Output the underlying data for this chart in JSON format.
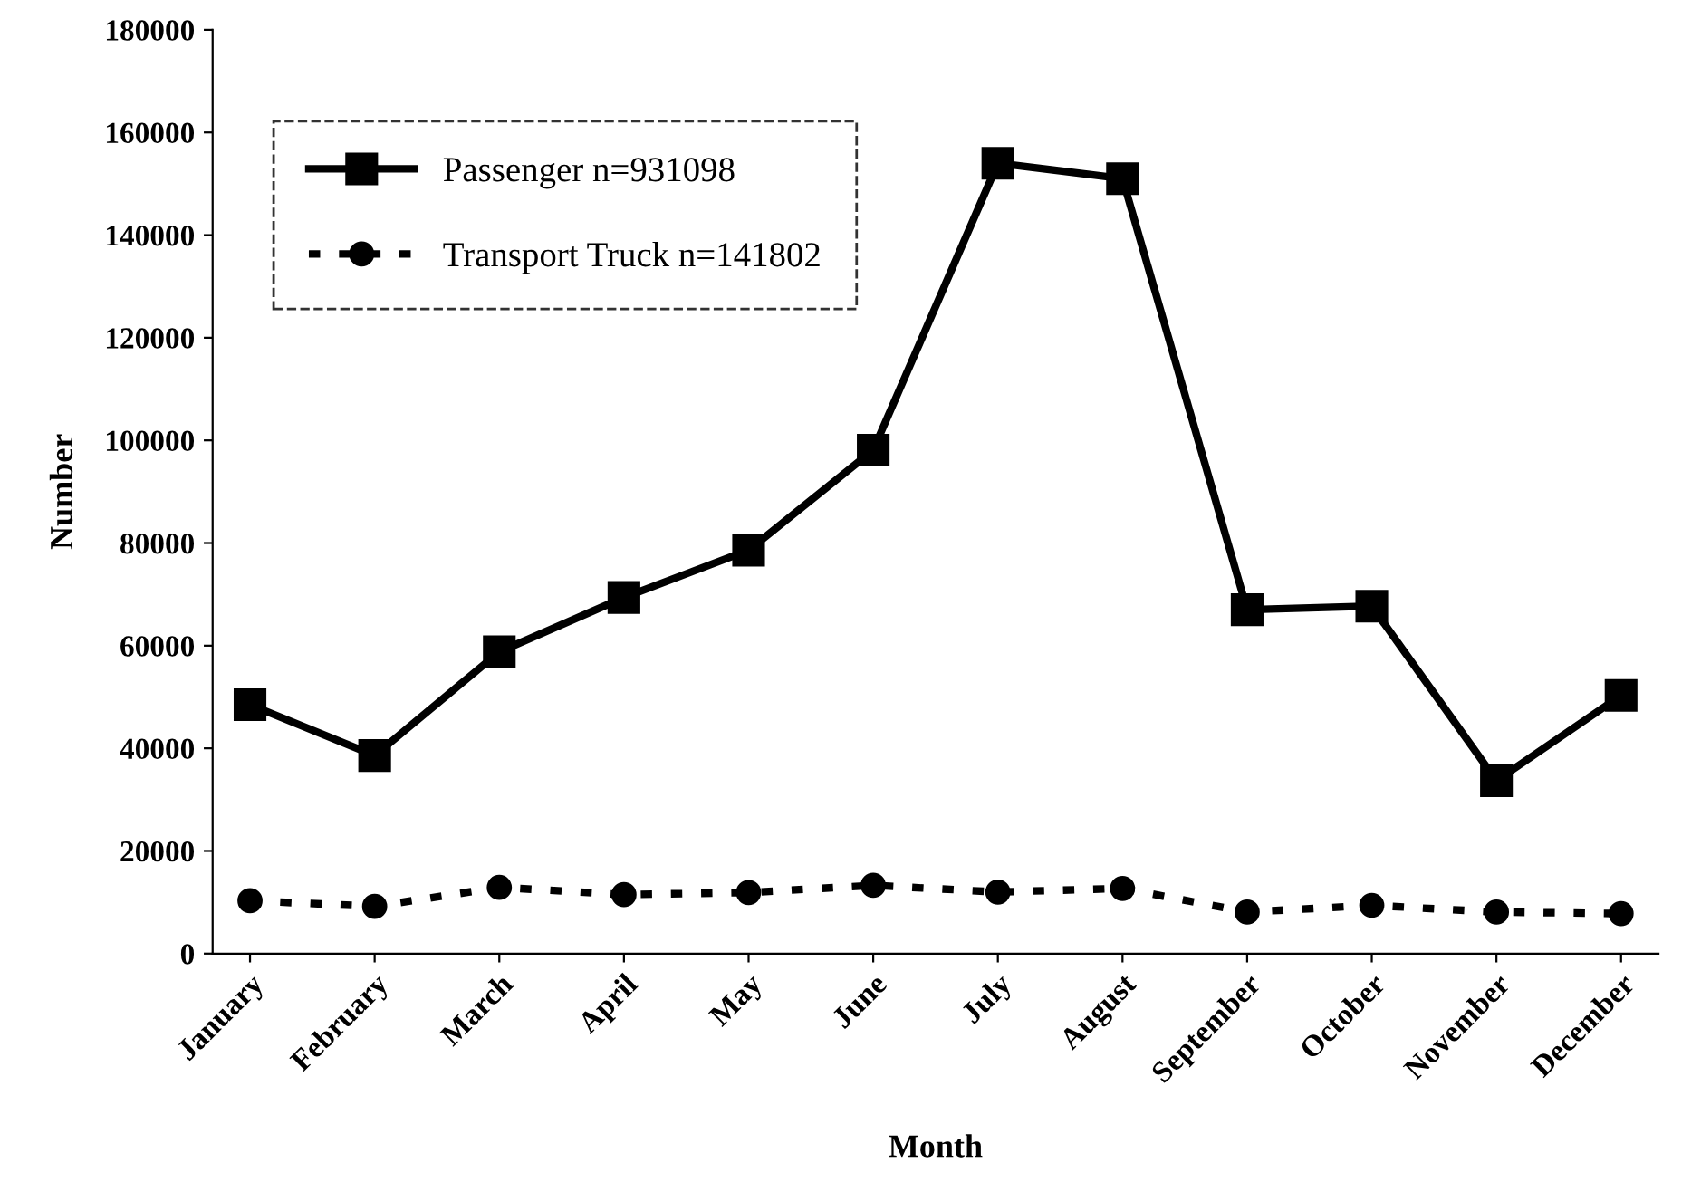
{
  "chart_data": {
    "type": "line",
    "xlabel": "Month",
    "ylabel": "Number",
    "categories": [
      "January",
      "February",
      "March",
      "April",
      "May",
      "June",
      "July",
      "August",
      "September",
      "October",
      "November",
      "December"
    ],
    "series": [
      {
        "name": "Passenger n=931098",
        "color": "#000000",
        "marker": "square",
        "line_style": "solid",
        "values": [
          48500,
          38600,
          58800,
          69400,
          78600,
          98100,
          154000,
          151000,
          67000,
          67700,
          33700,
          50300
        ]
      },
      {
        "name": "Transport Truck n=141802",
        "color": "#000000",
        "marker": "circle",
        "line_style": "dotted",
        "values": [
          10300,
          9200,
          12900,
          11500,
          11900,
          13300,
          12000,
          12700,
          8100,
          9400,
          8100,
          7800
        ]
      }
    ],
    "ylim": [
      0,
      180000
    ],
    "yticks": [
      0,
      20000,
      40000,
      60000,
      80000,
      100000,
      120000,
      140000,
      160000,
      180000
    ],
    "grid": false,
    "legend": "top left"
  }
}
